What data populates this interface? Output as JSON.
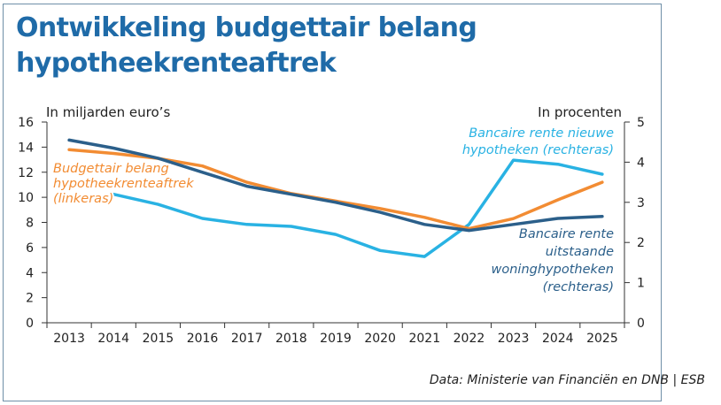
{
  "title_line1": "Ontwikkeling budgettair belang",
  "title_line2": "hypotheekrenteaftrek",
  "source": "Data: Ministerie van Financiën en DNB | ESB",
  "chart_data": {
    "type": "line",
    "x": [
      2013,
      2014,
      2015,
      2016,
      2017,
      2018,
      2019,
      2020,
      2021,
      2022,
      2023,
      2024,
      2025
    ],
    "left_axis": {
      "label": "In miljarden euro’s",
      "ylim": [
        0,
        16
      ],
      "ticks": [
        0,
        2,
        4,
        6,
        8,
        10,
        12,
        14,
        16
      ]
    },
    "right_axis": {
      "label": "In procenten",
      "ylim": [
        0,
        5
      ],
      "ticks": [
        0,
        1,
        2,
        3,
        4,
        5
      ]
    },
    "grid": false,
    "colors": {
      "budget": "#f28c33",
      "outstanding": "#2b5f8a",
      "new": "#29b2e3",
      "axis": "#333333",
      "title": "#1f6ba8"
    },
    "series": [
      {
        "name": "Budgettair belang hypotheekrenteaftrek (linkeras)",
        "label_lines": [
          "Budgettair belang",
          "hypotheekrenteaftrek",
          "(linkeras)"
        ],
        "axis": "left",
        "color_key": "budget",
        "values": [
          13.8,
          13.5,
          13.1,
          12.5,
          11.2,
          10.3,
          9.7,
          9.1,
          8.4,
          7.5,
          8.3,
          9.8,
          11.2
        ]
      },
      {
        "name": "Bancaire rente uitstaande woninghypotheken (rechteras)",
        "label_lines": [
          "Bancaire rente",
          "uitstaande",
          "woninghypotheken",
          "(rechteras)"
        ],
        "axis": "right",
        "color_key": "outstanding",
        "values": [
          4.55,
          4.35,
          4.1,
          3.75,
          3.4,
          3.2,
          3.0,
          2.75,
          2.45,
          2.3,
          2.45,
          2.6,
          2.65
        ]
      },
      {
        "name": "Bancaire rente nieuwe hypotheken (rechteras)",
        "label_lines": [
          "Bancaire rente nieuwe",
          "hypotheken (rechteras)"
        ],
        "axis": "right",
        "color_key": "new",
        "x": [
          2014,
          2015,
          2016,
          2017,
          2018,
          2019,
          2020,
          2021,
          2022,
          2023,
          2024,
          2025
        ],
        "values": [
          3.2,
          2.95,
          2.6,
          2.45,
          2.4,
          2.2,
          1.8,
          1.65,
          2.45,
          4.05,
          3.95,
          3.7
        ]
      }
    ]
  }
}
